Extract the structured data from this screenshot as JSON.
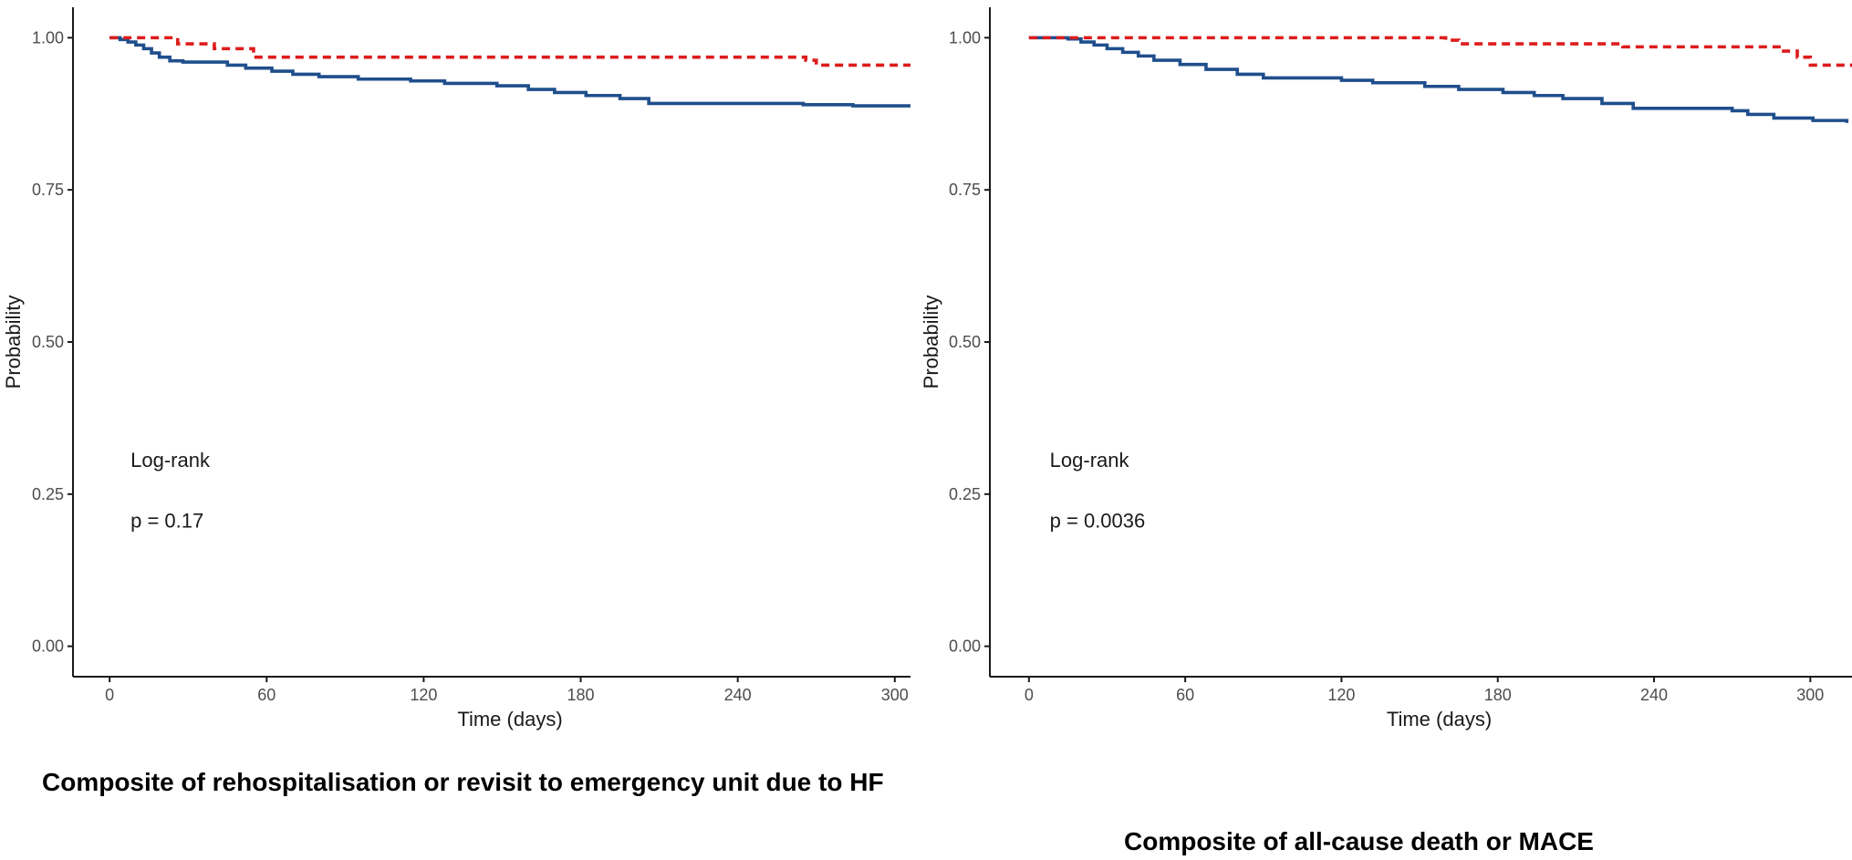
{
  "panels": [
    {
      "caption": "Composite of rehospitalisation or revisit to emergency unit due to HF",
      "chart_data": {
        "type": "line",
        "title": "",
        "xlabel": "Time (days)",
        "ylabel": "Probability",
        "xlim": [
          -14,
          306
        ],
        "ylim": [
          -0.05,
          1.05
        ],
        "xticks": [
          0,
          60,
          120,
          180,
          240,
          300
        ],
        "xtick_labels": [
          "0",
          "60",
          "120",
          "180",
          "240",
          "300"
        ],
        "yticks": [
          0,
          0.25,
          0.5,
          0.75,
          1.0
        ],
        "ytick_labels": [
          "0.00",
          "0.25",
          "0.50",
          "0.75",
          "1.00"
        ],
        "annotations": [
          "Log-rank",
          "p = 0.17"
        ],
        "series": [
          {
            "name": "solid",
            "color": "#1f4e8c",
            "dash": "solid",
            "points": [
              [
                0,
                1.0
              ],
              [
                4,
                0.997
              ],
              [
                7,
                0.993
              ],
              [
                10,
                0.988
              ],
              [
                13,
                0.982
              ],
              [
                16,
                0.975
              ],
              [
                19,
                0.968
              ],
              [
                23,
                0.962
              ],
              [
                28,
                0.96
              ],
              [
                45,
                0.955
              ],
              [
                52,
                0.95
              ],
              [
                62,
                0.945
              ],
              [
                70,
                0.94
              ],
              [
                80,
                0.936
              ],
              [
                95,
                0.932
              ],
              [
                115,
                0.929
              ],
              [
                128,
                0.925
              ],
              [
                148,
                0.921
              ],
              [
                160,
                0.915
              ],
              [
                170,
                0.91
              ],
              [
                182,
                0.905
              ],
              [
                195,
                0.9
              ],
              [
                206,
                0.892
              ],
              [
                265,
                0.89
              ],
              [
                284,
                0.888
              ],
              [
                306,
                0.888
              ]
            ]
          },
          {
            "name": "dashed",
            "color": "#dd1c1c",
            "dash": "dashed",
            "points": [
              [
                0,
                1.0
              ],
              [
                26,
                0.99
              ],
              [
                40,
                0.982
              ],
              [
                55,
                0.968
              ],
              [
                266,
                0.963
              ],
              [
                270,
                0.955
              ],
              [
                306,
                0.955
              ]
            ]
          }
        ]
      }
    },
    {
      "caption": "Composite of all-cause death or MACE",
      "chart_data": {
        "type": "line",
        "title": "",
        "xlabel": "Time (days)",
        "ylabel": "Probability",
        "xlim": [
          -15,
          316
        ],
        "ylim": [
          -0.05,
          1.05
        ],
        "xticks": [
          0,
          60,
          120,
          180,
          240,
          300
        ],
        "xtick_labels": [
          "0",
          "60",
          "120",
          "180",
          "240",
          "300"
        ],
        "yticks": [
          0,
          0.25,
          0.5,
          0.75,
          1.0
        ],
        "ytick_labels": [
          "0.00",
          "0.25",
          "0.50",
          "0.75",
          "1.00"
        ],
        "annotations": [
          "Log-rank",
          "p = 0.0036"
        ],
        "series": [
          {
            "name": "solid",
            "color": "#1f4e8c",
            "dash": "solid",
            "points": [
              [
                0,
                1.0
              ],
              [
                15,
                0.998
              ],
              [
                20,
                0.993
              ],
              [
                25,
                0.988
              ],
              [
                30,
                0.982
              ],
              [
                36,
                0.976
              ],
              [
                42,
                0.97
              ],
              [
                48,
                0.963
              ],
              [
                58,
                0.956
              ],
              [
                68,
                0.948
              ],
              [
                80,
                0.94
              ],
              [
                90,
                0.934
              ],
              [
                120,
                0.93
              ],
              [
                132,
                0.926
              ],
              [
                152,
                0.92
              ],
              [
                165,
                0.915
              ],
              [
                182,
                0.91
              ],
              [
                194,
                0.905
              ],
              [
                205,
                0.9
              ],
              [
                220,
                0.892
              ],
              [
                232,
                0.884
              ],
              [
                270,
                0.88
              ],
              [
                276,
                0.874
              ],
              [
                286,
                0.868
              ],
              [
                301,
                0.864
              ],
              [
                314,
                0.86
              ]
            ]
          },
          {
            "name": "dashed",
            "color": "#dd1c1c",
            "dash": "dashed",
            "points": [
              [
                0,
                1.0
              ],
              [
                160,
                0.996
              ],
              [
                165,
                0.99
              ],
              [
                228,
                0.985
              ],
              [
                288,
                0.978
              ],
              [
                295,
                0.968
              ],
              [
                300,
                0.955
              ],
              [
                316,
                0.955
              ]
            ]
          }
        ]
      }
    }
  ]
}
